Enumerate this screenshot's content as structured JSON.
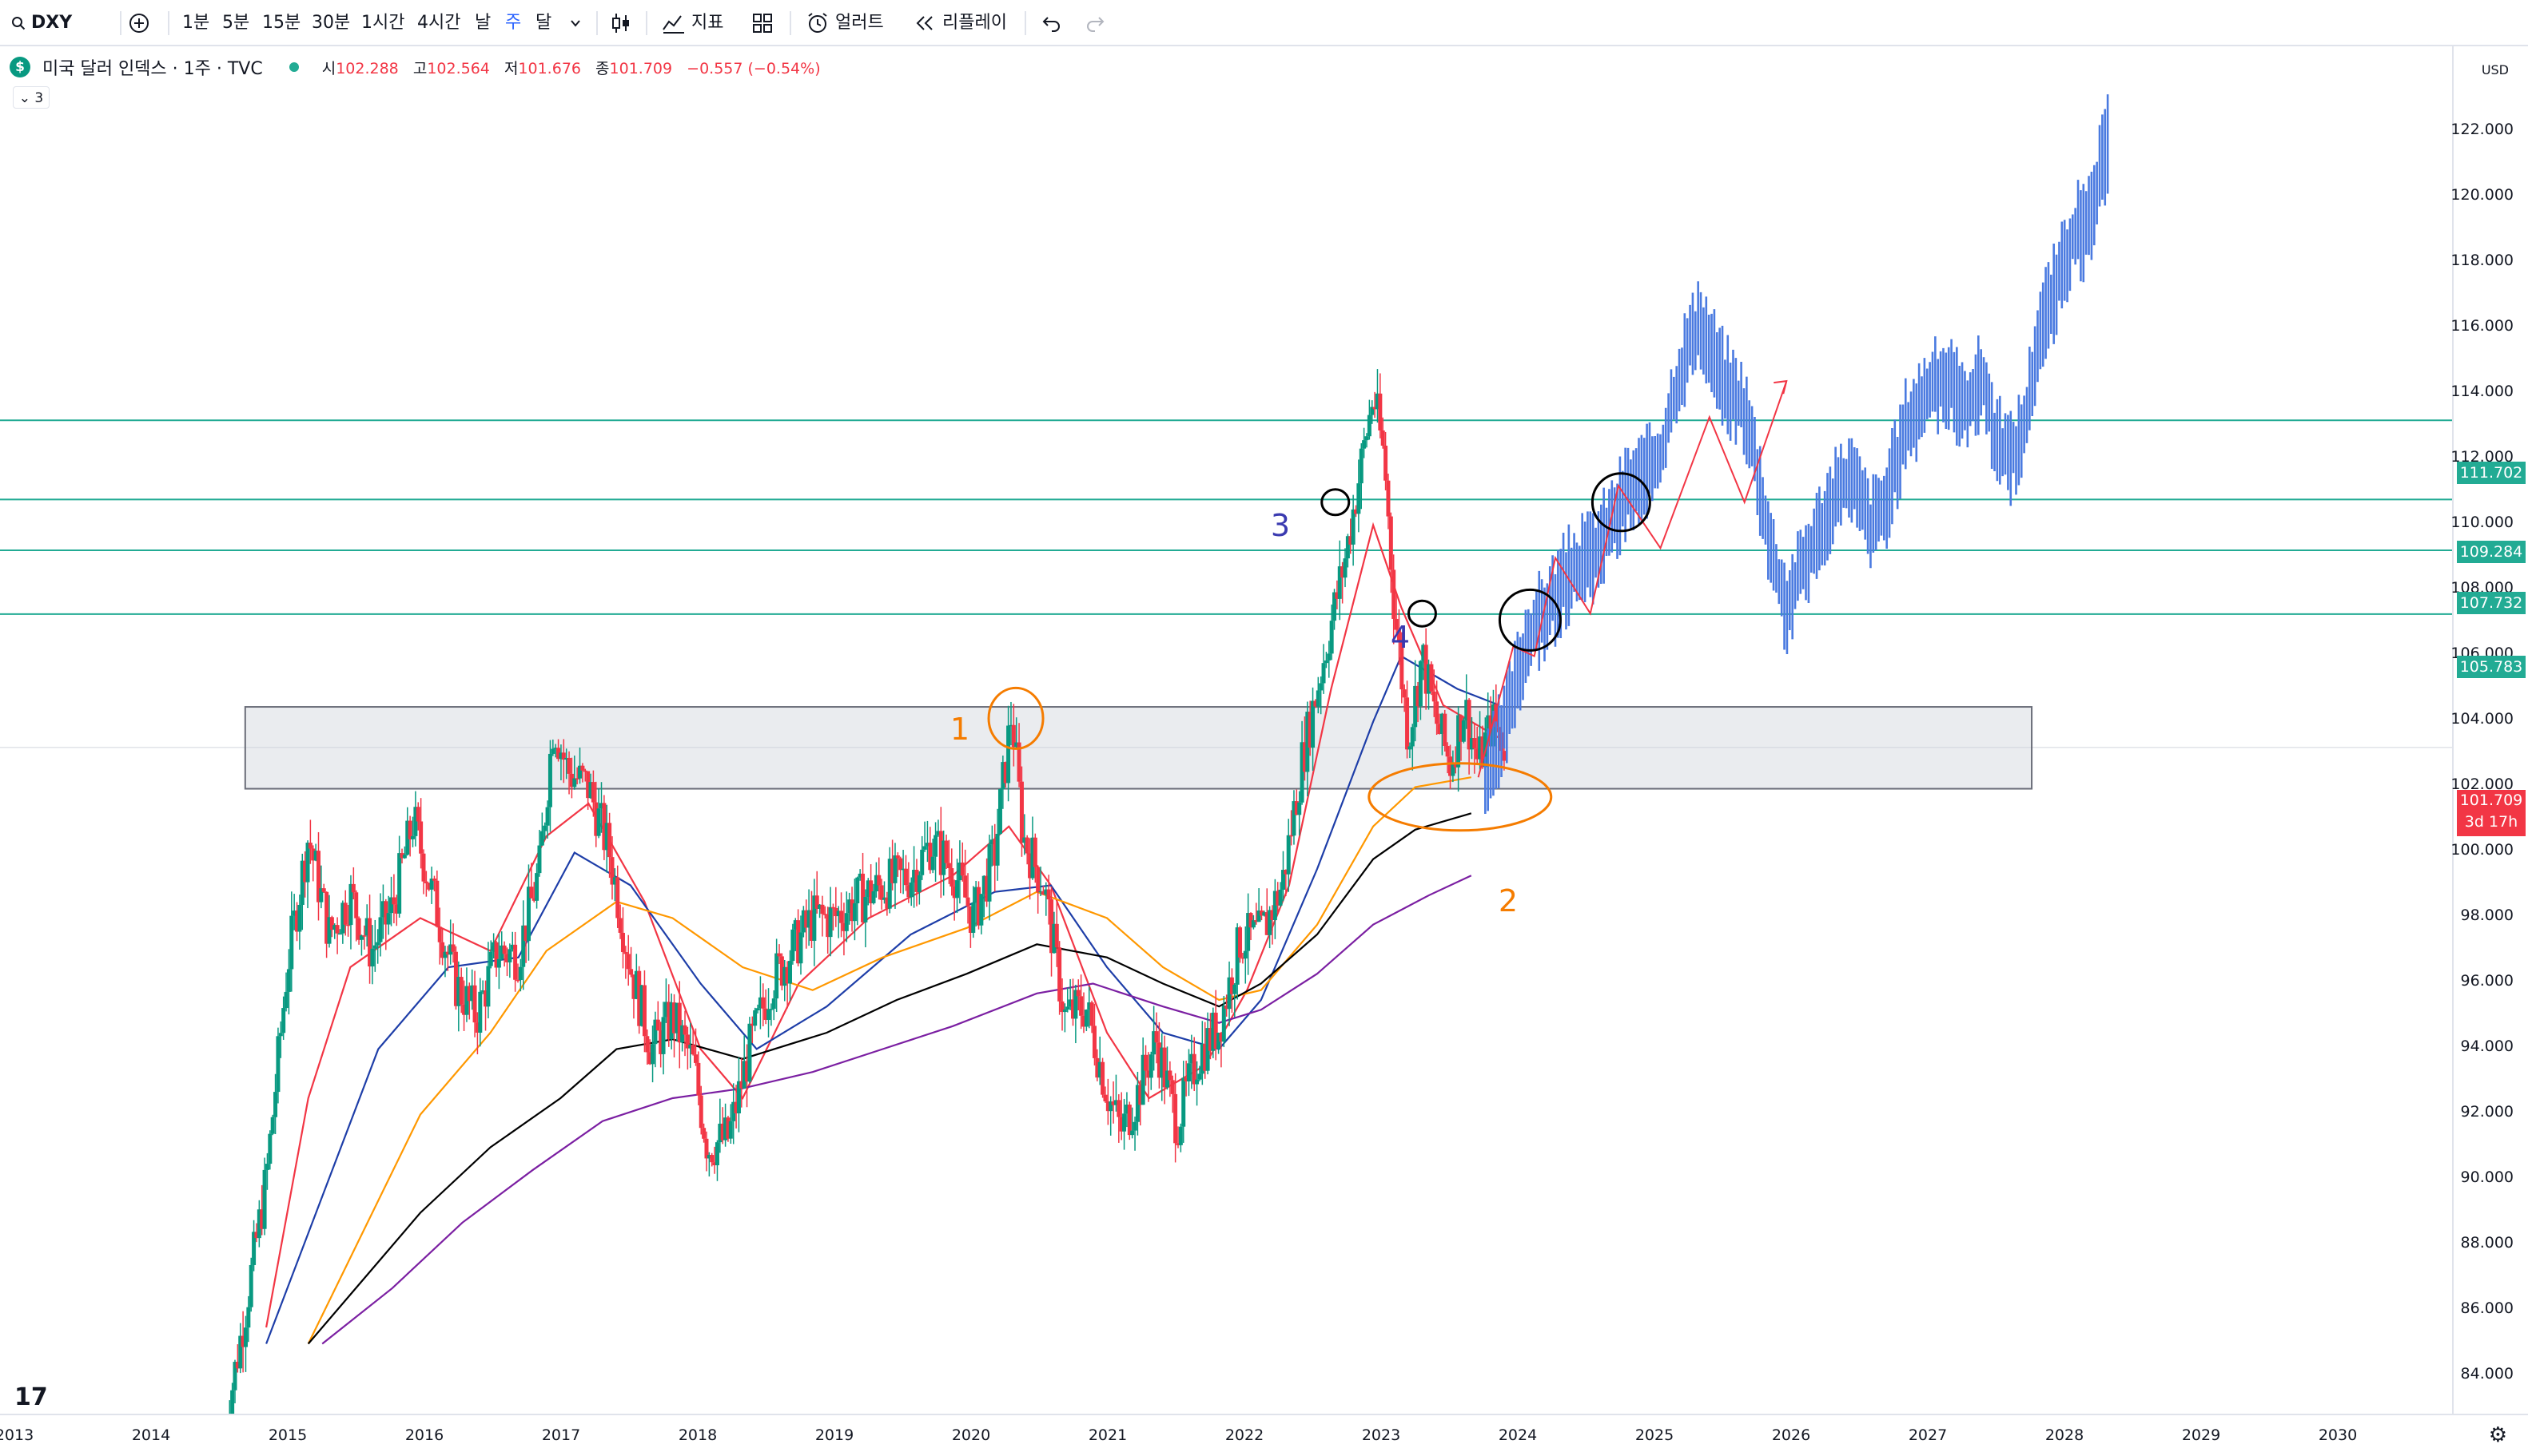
{
  "toolbar": {
    "symbol": "DXY",
    "intervals": [
      "1분",
      "5분",
      "15분",
      "30분",
      "1시간",
      "4시간",
      "날",
      "주",
      "달"
    ],
    "active_interval": "주",
    "indicators_label": "지표",
    "alert_label": "얼러트",
    "replay_label": "리플레이"
  },
  "legend": {
    "title": "미국 달러 인덱스 · 1주 · TVC",
    "open_label": "시",
    "open": "102.288",
    "high_label": "고",
    "high": "102.564",
    "low_label": "저",
    "low": "101.676",
    "close_label": "종",
    "close": "101.709",
    "change": "−0.557 (−0.54%)",
    "indicator_count": "3"
  },
  "price_scale": {
    "currency": "USD",
    "ticks": [
      "122.000",
      "120.000",
      "118.000",
      "116.000",
      "114.000",
      "112.000",
      "110.000",
      "108.000",
      "106.000",
      "104.000",
      "102.000",
      "100.000",
      "98.000",
      "96.000",
      "94.000",
      "92.000",
      "90.000",
      "88.000",
      "86.000",
      "84.000"
    ],
    "levels": [
      "111.702",
      "109.284",
      "107.732",
      "105.783"
    ],
    "current_price": "101.709",
    "countdown": "3d 17h"
  },
  "time_axis": {
    "labels": [
      "2013",
      "2014",
      "2015",
      "2016",
      "2017",
      "2018",
      "2019",
      "2020",
      "2021",
      "2022",
      "2023",
      "2024",
      "2025",
      "2026",
      "2027",
      "2028",
      "2029",
      "2030"
    ]
  },
  "annotations": [
    "1",
    "2",
    "3",
    "4"
  ],
  "colors": {
    "up": "#089981",
    "down": "#f23645",
    "level_line": "#22ab94",
    "ma_red": "#f23645",
    "ma_blue": "#1e3ea8",
    "ma_orange": "#ff9800",
    "ma_black": "#000000",
    "ma_purple": "#7b1fa2",
    "projection": "#4a7ae0",
    "annot_orange": "#f57c00",
    "annot_blue": "#3a3ab0"
  },
  "chart_data": {
    "type": "candlestick",
    "title": "미국 달러 인덱스 · 1주 · TVC",
    "x_range": [
      2013,
      2030.5
    ],
    "y_range": [
      83.5,
      124
    ],
    "horizontal_levels": [
      111.702,
      109.284,
      107.732,
      105.783
    ],
    "resistance_zone": {
      "from": 2014.75,
      "to": 2027.5,
      "low": 100.45,
      "high": 102.95
    },
    "price_path": [
      [
        2014.6,
        80.8
      ],
      [
        2014.75,
        84.5
      ],
      [
        2014.9,
        88.5
      ],
      [
        2015.05,
        95.0
      ],
      [
        2015.2,
        99.0
      ],
      [
        2015.35,
        96.0
      ],
      [
        2015.5,
        97.2
      ],
      [
        2015.65,
        95.5
      ],
      [
        2015.8,
        96.8
      ],
      [
        2015.95,
        99.5
      ],
      [
        2016.1,
        97.0
      ],
      [
        2016.25,
        94.5
      ],
      [
        2016.4,
        93.5
      ],
      [
        2016.55,
        95.5
      ],
      [
        2016.7,
        95.4
      ],
      [
        2016.85,
        98.0
      ],
      [
        2016.95,
        102.5
      ],
      [
        2017.05,
        101.0
      ],
      [
        2017.2,
        100.5
      ],
      [
        2017.35,
        98.5
      ],
      [
        2017.5,
        95.0
      ],
      [
        2017.65,
        92.5
      ],
      [
        2017.8,
        93.5
      ],
      [
        2017.95,
        92.0
      ],
      [
        2018.05,
        89.5
      ],
      [
        2018.2,
        89.8
      ],
      [
        2018.35,
        92.5
      ],
      [
        2018.5,
        94.5
      ],
      [
        2018.65,
        95.5
      ],
      [
        2018.8,
        96.5
      ],
      [
        2018.95,
        96.5
      ],
      [
        2019.1,
        97.0
      ],
      [
        2019.3,
        97.5
      ],
      [
        2019.5,
        97.8
      ],
      [
        2019.65,
        98.8
      ],
      [
        2019.8,
        98.0
      ],
      [
        2019.95,
        96.5
      ],
      [
        2020.1,
        98.5
      ],
      [
        2020.22,
        102.8
      ],
      [
        2020.3,
        99.0
      ],
      [
        2020.45,
        97.5
      ],
      [
        2020.6,
        93.5
      ],
      [
        2020.75,
        93.8
      ],
      [
        2020.9,
        91.2
      ],
      [
        2021.0,
        90.0
      ],
      [
        2021.1,
        90.9
      ],
      [
        2021.25,
        92.8
      ],
      [
        2021.4,
        90.2
      ],
      [
        2021.55,
        92.3
      ],
      [
        2021.7,
        93.2
      ],
      [
        2021.85,
        95.8
      ],
      [
        2022.0,
        96.0
      ],
      [
        2022.15,
        97.5
      ],
      [
        2022.3,
        101.5
      ],
      [
        2022.45,
        104.5
      ],
      [
        2022.6,
        107.5
      ],
      [
        2022.72,
        110.5
      ],
      [
        2022.8,
        112.5
      ],
      [
        2022.88,
        110.5
      ],
      [
        2022.95,
        106.0
      ],
      [
        2023.05,
        102.0
      ],
      [
        2023.15,
        104.5
      ],
      [
        2023.25,
        102.5
      ],
      [
        2023.35,
        101.2
      ],
      [
        2023.45,
        103.0
      ],
      [
        2023.55,
        101.2
      ],
      [
        2023.65,
        102.5
      ],
      [
        2023.75,
        101.7
      ]
    ],
    "projection_path": [
      [
        2023.6,
        100.5
      ],
      [
        2023.75,
        102.5
      ],
      [
        2023.9,
        105.0
      ],
      [
        2024.05,
        106.0
      ],
      [
        2024.2,
        107.0
      ],
      [
        2024.35,
        107.5
      ],
      [
        2024.5,
        108.5
      ],
      [
        2024.6,
        109.5
      ],
      [
        2024.75,
        110.0
      ],
      [
        2024.85,
        110.5
      ],
      [
        2024.95,
        112.5
      ],
      [
        2025.05,
        114.0
      ],
      [
        2025.15,
        114.5
      ],
      [
        2025.3,
        113.0
      ],
      [
        2025.45,
        112.0
      ],
      [
        2025.55,
        110.0
      ],
      [
        2025.65,
        107.5
      ],
      [
        2025.75,
        106.0
      ],
      [
        2025.9,
        107.5
      ],
      [
        2026.05,
        109.0
      ],
      [
        2026.2,
        110.0
      ],
      [
        2026.35,
        108.5
      ],
      [
        2026.45,
        109.0
      ],
      [
        2026.6,
        111.5
      ],
      [
        2026.75,
        112.5
      ],
      [
        2026.9,
        113.0
      ],
      [
        2027.0,
        112.0
      ],
      [
        2027.15,
        113.0
      ],
      [
        2027.25,
        111.0
      ],
      [
        2027.35,
        110.5
      ],
      [
        2027.45,
        111.5
      ],
      [
        2027.55,
        114.5
      ],
      [
        2027.7,
        116.0
      ],
      [
        2027.8,
        117.5
      ],
      [
        2027.9,
        117.5
      ],
      [
        2028.0,
        119.5
      ],
      [
        2028.05,
        120.2
      ]
    ],
    "moving_averages": [
      {
        "color": "red",
        "points": [
          [
            2014.9,
            84
          ],
          [
            2015.2,
            91
          ],
          [
            2015.5,
            95
          ],
          [
            2016.0,
            96.5
          ],
          [
            2016.5,
            95.5
          ],
          [
            2016.9,
            99
          ],
          [
            2017.2,
            100
          ],
          [
            2017.6,
            97
          ],
          [
            2018.0,
            92.5
          ],
          [
            2018.3,
            91
          ],
          [
            2018.7,
            94.5
          ],
          [
            2019.2,
            96.5
          ],
          [
            2019.8,
            97.8
          ],
          [
            2020.2,
            99.3
          ],
          [
            2020.5,
            97.5
          ],
          [
            2020.9,
            93
          ],
          [
            2021.2,
            91
          ],
          [
            2021.6,
            92
          ],
          [
            2021.9,
            94.3
          ],
          [
            2022.2,
            97.5
          ],
          [
            2022.5,
            103.5
          ],
          [
            2022.8,
            108.5
          ],
          [
            2023.0,
            106
          ],
          [
            2023.3,
            103
          ],
          [
            2023.7,
            102
          ]
        ]
      },
      {
        "color": "blue",
        "points": [
          [
            2014.9,
            83.5
          ],
          [
            2015.3,
            88
          ],
          [
            2015.7,
            92.5
          ],
          [
            2016.2,
            95
          ],
          [
            2016.7,
            95.3
          ],
          [
            2017.1,
            98.5
          ],
          [
            2017.5,
            97.5
          ],
          [
            2018.0,
            94.5
          ],
          [
            2018.4,
            92.5
          ],
          [
            2018.9,
            93.8
          ],
          [
            2019.5,
            96
          ],
          [
            2020.1,
            97.3
          ],
          [
            2020.5,
            97.5
          ],
          [
            2020.9,
            95
          ],
          [
            2021.3,
            93
          ],
          [
            2021.7,
            92.5
          ],
          [
            2022.0,
            94
          ],
          [
            2022.4,
            98
          ],
          [
            2022.8,
            102.5
          ],
          [
            2023.0,
            104.5
          ],
          [
            2023.4,
            103.5
          ],
          [
            2023.7,
            103
          ]
        ]
      },
      {
        "color": "orange",
        "points": [
          [
            2015.2,
            83.5
          ],
          [
            2015.6,
            87
          ],
          [
            2016.0,
            90.5
          ],
          [
            2016.5,
            93
          ],
          [
            2016.9,
            95.5
          ],
          [
            2017.4,
            97
          ],
          [
            2017.8,
            96.5
          ],
          [
            2018.3,
            95
          ],
          [
            2018.8,
            94.3
          ],
          [
            2019.3,
            95.3
          ],
          [
            2019.9,
            96.2
          ],
          [
            2020.4,
            97.3
          ],
          [
            2020.9,
            96.5
          ],
          [
            2021.3,
            95
          ],
          [
            2021.7,
            94
          ],
          [
            2022.0,
            94.3
          ],
          [
            2022.4,
            96.3
          ],
          [
            2022.8,
            99.3
          ],
          [
            2023.1,
            100.5
          ],
          [
            2023.5,
            100.8
          ]
        ]
      },
      {
        "color": "black",
        "points": [
          [
            2015.2,
            83.5
          ],
          [
            2015.6,
            85.5
          ],
          [
            2016.0,
            87.5
          ],
          [
            2016.5,
            89.5
          ],
          [
            2017.0,
            91
          ],
          [
            2017.4,
            92.5
          ],
          [
            2017.8,
            92.8
          ],
          [
            2018.3,
            92.2
          ],
          [
            2018.9,
            93
          ],
          [
            2019.4,
            94
          ],
          [
            2019.9,
            94.8
          ],
          [
            2020.4,
            95.7
          ],
          [
            2020.9,
            95.3
          ],
          [
            2021.3,
            94.5
          ],
          [
            2021.7,
            93.8
          ],
          [
            2022.0,
            94.5
          ],
          [
            2022.4,
            96
          ],
          [
            2022.8,
            98.3
          ],
          [
            2023.1,
            99.2
          ],
          [
            2023.5,
            99.7
          ]
        ]
      },
      {
        "color": "purple",
        "points": [
          [
            2015.3,
            83.5
          ],
          [
            2015.8,
            85.2
          ],
          [
            2016.3,
            87.2
          ],
          [
            2016.8,
            88.8
          ],
          [
            2017.3,
            90.3
          ],
          [
            2017.8,
            91
          ],
          [
            2018.3,
            91.3
          ],
          [
            2018.8,
            91.8
          ],
          [
            2019.3,
            92.5
          ],
          [
            2019.8,
            93.2
          ],
          [
            2020.4,
            94.2
          ],
          [
            2020.8,
            94.5
          ],
          [
            2021.3,
            93.8
          ],
          [
            2021.7,
            93.3
          ],
          [
            2022.0,
            93.7
          ],
          [
            2022.4,
            94.8
          ],
          [
            2022.8,
            96.3
          ],
          [
            2023.2,
            97.2
          ],
          [
            2023.5,
            97.8
          ]
        ]
      }
    ],
    "red_zigzag": [
      [
        2023.55,
        100.8
      ],
      [
        2023.8,
        104.8
      ],
      [
        2023.95,
        104.5
      ],
      [
        2024.1,
        107.5
      ],
      [
        2024.35,
        105.8
      ],
      [
        2024.55,
        109.7
      ],
      [
        2024.85,
        107.8
      ],
      [
        2025.2,
        111.8
      ],
      [
        2025.45,
        109.2
      ],
      [
        2025.75,
        112.9
      ]
    ]
  }
}
